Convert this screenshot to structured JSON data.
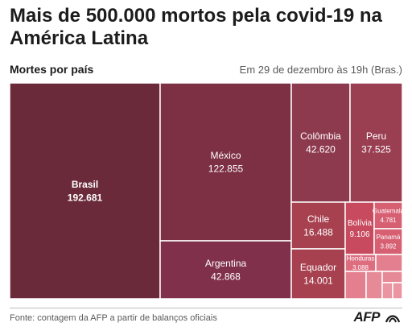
{
  "title": "Mais de 500.000 mortos pela covid-19 na América Latina",
  "subtitle": "Mortes por país",
  "date_note": "Em 29 de dezembro às 19h (Bras.)",
  "source": "Fonte: contagem da AFP a partir de balanços oficiais",
  "logo": "AFP",
  "chart_data": {
    "type": "treemap",
    "title": "Mais de 500.000 mortos pela covid-19 na América Latina",
    "subtitle": "Mortes por país",
    "items": [
      {
        "name": "Brasil",
        "label": "192.681",
        "value": 192681,
        "color": "#6b2a3a"
      },
      {
        "name": "México",
        "label": "122.855",
        "value": 122855,
        "color": "#7d2f44"
      },
      {
        "name": "Argentina",
        "label": "42.868",
        "value": 42868,
        "color": "#80304a"
      },
      {
        "name": "Colômbia",
        "label": "42.620",
        "value": 42620,
        "color": "#8e3a4e"
      },
      {
        "name": "Peru",
        "label": "37.525",
        "value": 37525,
        "color": "#9a3e52"
      },
      {
        "name": "Chile",
        "label": "16.488",
        "value": 16488,
        "color": "#a7404f"
      },
      {
        "name": "Equador",
        "label": "14.001",
        "value": 14001,
        "color": "#a7404f"
      },
      {
        "name": "Bolívia",
        "label": "9.106",
        "value": 9106,
        "color": "#c84a5f"
      },
      {
        "name": "Guatemala",
        "label": "4.781",
        "value": 4781,
        "color": "#d65f72"
      },
      {
        "name": "Panamá",
        "label": "3.892",
        "value": 3892,
        "color": "#d65f72"
      },
      {
        "name": "Honduras",
        "label": "3.088",
        "value": 3088,
        "color": "#dd6e80"
      },
      {
        "name": "",
        "label": "",
        "value": 2000,
        "color": "#e37f8e"
      },
      {
        "name": "",
        "label": "",
        "value": 1500,
        "color": "#e37f8e"
      },
      {
        "name": "",
        "label": "",
        "value": 1200,
        "color": "#e78a98"
      },
      {
        "name": "",
        "label": "",
        "value": 900,
        "color": "#e78a98"
      },
      {
        "name": "",
        "label": "",
        "value": 700,
        "color": "#eb95a2"
      },
      {
        "name": "",
        "label": "",
        "value": 500,
        "color": "#eb95a2"
      }
    ]
  }
}
